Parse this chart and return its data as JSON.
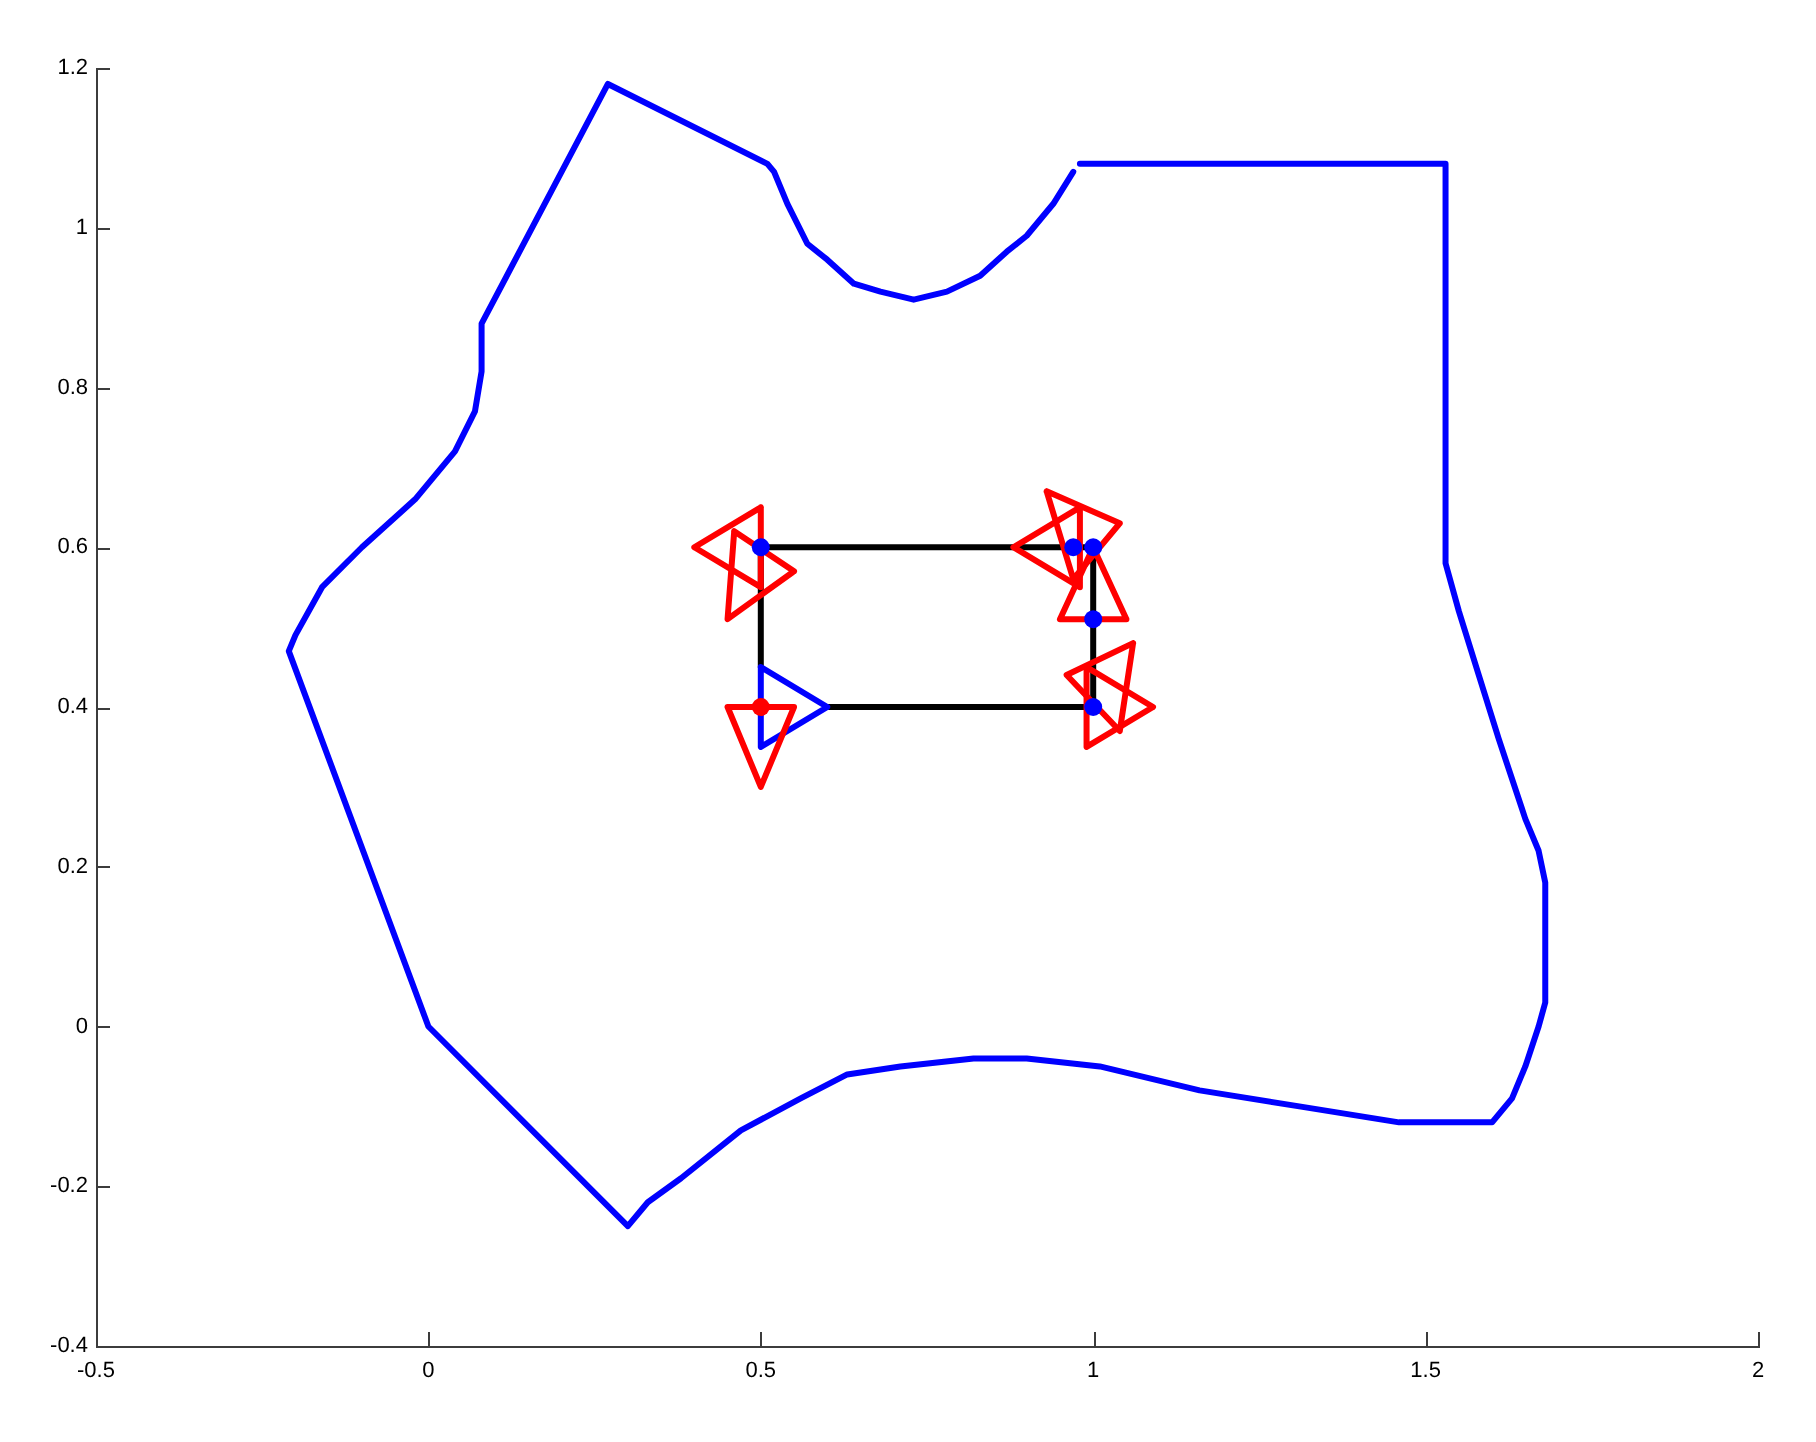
{
  "chart_data": {
    "type": "line",
    "xlim": [
      -0.5,
      2
    ],
    "xticks": [
      -0.5,
      0,
      0.5,
      1,
      1.5,
      2
    ],
    "ylim": [
      -0.4,
      1.2
    ],
    "yticks": [
      -0.4,
      -0.2,
      0,
      0.2,
      0.4,
      0.6,
      0.8,
      1,
      1.2
    ],
    "grid": false,
    "legend": false,
    "marker": "none",
    "series": [
      {
        "color": "#0000ff",
        "x": [
          0.98,
          1.53,
          1.53,
          1.55,
          1.58,
          1.61,
          1.65,
          1.67,
          1.68,
          1.68,
          1.67,
          1.65,
          1.63,
          1.6,
          1.46,
          1.31,
          1.16,
          1.01,
          0.9,
          0.82,
          0.71,
          0.63,
          0.56,
          0.47,
          0.38,
          0.33,
          0.3,
          0,
          -0.21,
          -0.2,
          -0.16,
          -0.1,
          -0.02,
          0.04,
          0.07,
          0.08,
          0.08,
          0.27,
          0.51,
          0.52,
          0.54,
          0.57,
          0.6,
          0.64,
          0.68,
          0.73,
          0.78,
          0.83,
          0.87,
          0.9,
          0.94,
          0.97
        ],
        "values": [
          1.08,
          1.08,
          0.58,
          0.52,
          0.44,
          0.36,
          0.26,
          0.22,
          0.18,
          0.03,
          0,
          -0.05,
          -0.09,
          -0.12,
          -0.12,
          -0.1,
          -0.08,
          -0.05,
          -0.04,
          -0.04,
          -0.05,
          -0.06,
          -0.09,
          -0.13,
          -0.19,
          -0.22,
          -0.25,
          0,
          0.47,
          0.49,
          0.55,
          0.6,
          0.66,
          0.72,
          0.77,
          0.82,
          0.88,
          1.18,
          1.08,
          1.07,
          1.03,
          0.98,
          0.96,
          0.93,
          0.92,
          0.91,
          0.92,
          0.94,
          0.97,
          0.99,
          1.03,
          1.07
        ]
      },
      {
        "color": "#000000",
        "x": [
          0.6,
          1,
          1,
          0.5,
          0.5
        ],
        "values": [
          0.4,
          0.4,
          0.6,
          0.6,
          0.45
        ]
      },
      {
        "color": "#0000ff",
        "x": [
          0.5,
          0.6,
          0.5,
          0.5,
          0.6
        ],
        "values": [
          0.45,
          0.4,
          0.35,
          0.45,
          0.4
        ]
      },
      {
        "color": "#ff0000",
        "x": [
          0.4,
          0.5,
          0.5,
          0.4,
          0.5
        ],
        "values": [
          0.6,
          0.65,
          0.55,
          0.6,
          0.65
        ]
      },
      {
        "color": "#ff0000",
        "x": [
          0.46,
          0.55,
          0.45,
          0.46,
          0.55
        ],
        "values": [
          0.62,
          0.57,
          0.51,
          0.62,
          0.57
        ]
      },
      {
        "color": "#ff0000",
        "x": [
          0.45,
          0.55,
          0.5,
          0.45,
          0.55
        ],
        "values": [
          0.4,
          0.4,
          0.3,
          0.4,
          0.4
        ]
      },
      {
        "color": "#ff0000",
        "x": [
          0.88,
          0.98,
          0.98,
          0.88,
          0.98
        ],
        "values": [
          0.6,
          0.65,
          0.55,
          0.6,
          0.65
        ]
      },
      {
        "color": "#ff0000",
        "x": [
          0.93,
          1.04,
          0.97,
          0.93,
          1.04
        ],
        "values": [
          0.67,
          0.63,
          0.56,
          0.67,
          0.63
        ]
      },
      {
        "color": "#ff0000",
        "x": [
          0.95,
          1.05,
          1,
          0.95,
          1.05
        ],
        "values": [
          0.51,
          0.51,
          0.6,
          0.51,
          0.51
        ]
      },
      {
        "color": "#ff0000",
        "x": [
          1.06,
          0.96,
          1.04,
          1.06,
          0.96
        ],
        "values": [
          0.48,
          0.44,
          0.37,
          0.48,
          0.44
        ]
      },
      {
        "color": "#ff0000",
        "x": [
          0.99,
          1.09,
          0.99,
          0.99,
          1.09
        ],
        "values": [
          0.45,
          0.4,
          0.35,
          0.45,
          0.4
        ]
      },
      {
        "type": "scatter",
        "color": "#0000ff",
        "marker": "circle",
        "x": [
          0.5,
          0.97,
          1,
          1,
          1
        ],
        "values": [
          0.6,
          0.6,
          0.6,
          0.51,
          0.4
        ]
      },
      {
        "type": "scatter",
        "color": "#ff0000",
        "marker": "circle",
        "x": [
          0.5
        ],
        "values": [
          0.4
        ]
      }
    ]
  }
}
